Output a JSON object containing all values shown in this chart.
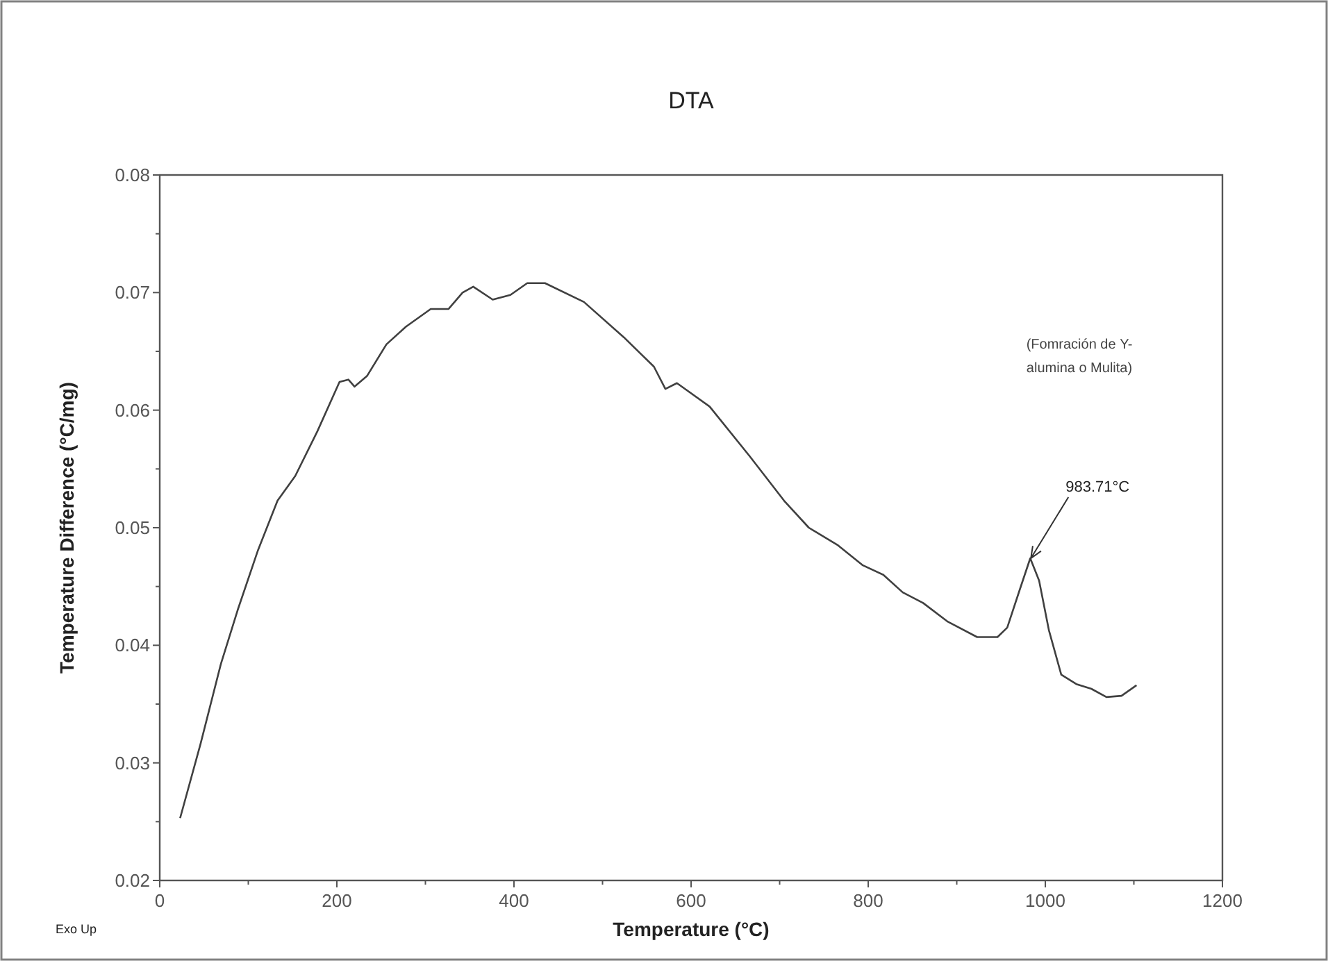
{
  "chart_data": {
    "type": "line",
    "title": "DTA",
    "xlabel": "Temperature (°C)",
    "ylabel": "Temperature Difference (°C/mg)",
    "xlim": [
      0,
      1200
    ],
    "ylim": [
      0.02,
      0.08
    ],
    "xticks": [
      0,
      {
        "value": 100,
        "label": null
      },
      200,
      {
        "value": 300,
        "label": null
      },
      400,
      {
        "value": 500,
        "label": null
      },
      600,
      {
        "value": 700,
        "label": null
      },
      800,
      {
        "value": 900,
        "label": null
      },
      1000,
      {
        "value": 1100,
        "label": null
      },
      1200
    ],
    "yticks": [
      {
        "value": 0.02,
        "label": "0.02"
      },
      {
        "value": 0.025,
        "label": null
      },
      {
        "value": 0.03,
        "label": "0.03"
      },
      {
        "value": 0.035,
        "label": null
      },
      {
        "value": 0.04,
        "label": "0.04"
      },
      {
        "value": 0.045,
        "label": null
      },
      {
        "value": 0.05,
        "label": "0.05"
      },
      {
        "value": 0.055,
        "label": null
      },
      {
        "value": 0.06,
        "label": "0.06"
      },
      {
        "value": 0.065,
        "label": null
      },
      {
        "value": 0.07,
        "label": "0.07"
      },
      {
        "value": 0.075,
        "label": null
      },
      {
        "value": 0.08,
        "label": "0.08"
      }
    ],
    "grid": false,
    "marker": "none",
    "line_style": "solid",
    "series": [
      {
        "color": "#404040",
        "x": [
          23,
          46,
          69,
          88,
          111,
          133,
          153,
          178,
          203,
          213,
          220,
          234,
          256,
          278,
          306,
          326,
          342,
          354,
          376,
          396,
          415,
          435,
          479,
          524,
          558,
          571,
          584,
          621,
          666,
          705,
          733,
          766,
          794,
          817,
          839,
          862,
          890,
          923,
          946,
          957,
          971,
          983,
          993,
          1004,
          1018,
          1035,
          1052,
          1069,
          1086,
          1103
        ],
        "values": [
          0.0253,
          0.0316,
          0.0384,
          0.043,
          0.0481,
          0.0523,
          0.0544,
          0.0582,
          0.0624,
          0.0626,
          0.062,
          0.0629,
          0.0656,
          0.0671,
          0.0686,
          0.0686,
          0.07,
          0.0705,
          0.0694,
          0.0698,
          0.0708,
          0.0708,
          0.0692,
          0.0662,
          0.0637,
          0.0618,
          0.0623,
          0.0603,
          0.0561,
          0.0523,
          0.05,
          0.0485,
          0.0468,
          0.046,
          0.0445,
          0.0436,
          0.042,
          0.0407,
          0.0407,
          0.0415,
          0.0447,
          0.0474,
          0.0455,
          0.0413,
          0.0375,
          0.0367,
          0.0363,
          0.0356,
          0.0357,
          0.0366
        ]
      }
    ],
    "annotations": [
      {
        "text": "983.71°C",
        "x": 983.71,
        "y": 0.0474
      },
      "(Fomración de Υ- alumina o Mulita)",
      "Exo Up"
    ]
  }
}
